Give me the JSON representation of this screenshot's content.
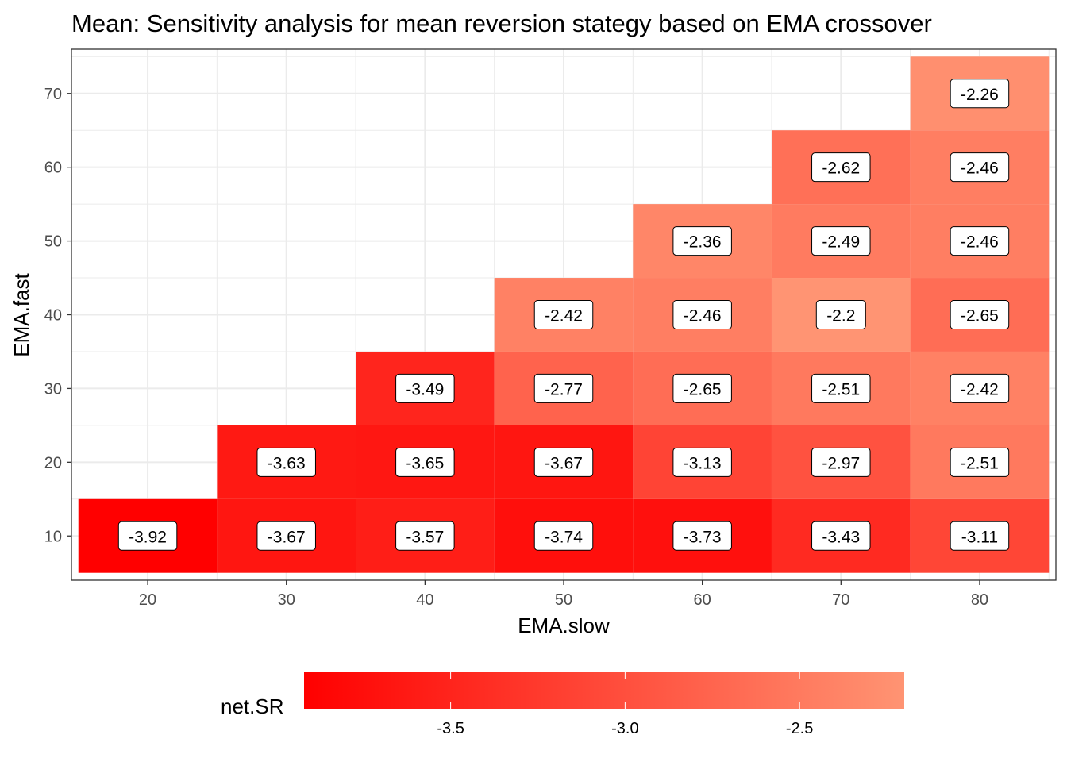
{
  "chart_data": {
    "type": "heatmap",
    "title": "Mean: Sensitivity analysis for mean reversion stategy based on EMA crossover",
    "xlabel": "EMA.slow",
    "ylabel": "EMA.fast",
    "x_ticks": [
      20,
      30,
      40,
      50,
      60,
      70,
      80
    ],
    "y_ticks": [
      10,
      20,
      30,
      40,
      50,
      60,
      70
    ],
    "xlim": [
      14.5,
      85.5
    ],
    "ylim": [
      4,
      76
    ],
    "grid": true,
    "cells": [
      {
        "x": 20,
        "y": 10,
        "value": -3.92
      },
      {
        "x": 30,
        "y": 10,
        "value": -3.67
      },
      {
        "x": 40,
        "y": 10,
        "value": -3.57
      },
      {
        "x": 50,
        "y": 10,
        "value": -3.74
      },
      {
        "x": 60,
        "y": 10,
        "value": -3.73
      },
      {
        "x": 70,
        "y": 10,
        "value": -3.43
      },
      {
        "x": 80,
        "y": 10,
        "value": -3.11
      },
      {
        "x": 30,
        "y": 20,
        "value": -3.63
      },
      {
        "x": 40,
        "y": 20,
        "value": -3.65
      },
      {
        "x": 50,
        "y": 20,
        "value": -3.67
      },
      {
        "x": 60,
        "y": 20,
        "value": -3.13
      },
      {
        "x": 70,
        "y": 20,
        "value": -2.97
      },
      {
        "x": 80,
        "y": 20,
        "value": -2.51
      },
      {
        "x": 40,
        "y": 30,
        "value": -3.49
      },
      {
        "x": 50,
        "y": 30,
        "value": -2.77
      },
      {
        "x": 60,
        "y": 30,
        "value": -2.65
      },
      {
        "x": 70,
        "y": 30,
        "value": -2.51
      },
      {
        "x": 80,
        "y": 30,
        "value": -2.42
      },
      {
        "x": 50,
        "y": 40,
        "value": -2.42
      },
      {
        "x": 60,
        "y": 40,
        "value": -2.46
      },
      {
        "x": 70,
        "y": 40,
        "value": -2.2
      },
      {
        "x": 80,
        "y": 40,
        "value": -2.65
      },
      {
        "x": 60,
        "y": 50,
        "value": -2.36
      },
      {
        "x": 70,
        "y": 50,
        "value": -2.49
      },
      {
        "x": 80,
        "y": 50,
        "value": -2.46
      },
      {
        "x": 70,
        "y": 60,
        "value": -2.62
      },
      {
        "x": 80,
        "y": 60,
        "value": -2.46
      },
      {
        "x": 80,
        "y": 70,
        "value": -2.26
      }
    ],
    "legend": {
      "title": "net.SR",
      "position": "bottom",
      "ticks": [
        -3.5,
        -3.0,
        -2.5
      ],
      "tick_labels": [
        "-3.5",
        "-3.0",
        "-2.5"
      ],
      "range": [
        -3.92,
        -2.2
      ],
      "color_low": "#FF0000",
      "color_high": "#FF9473"
    }
  }
}
